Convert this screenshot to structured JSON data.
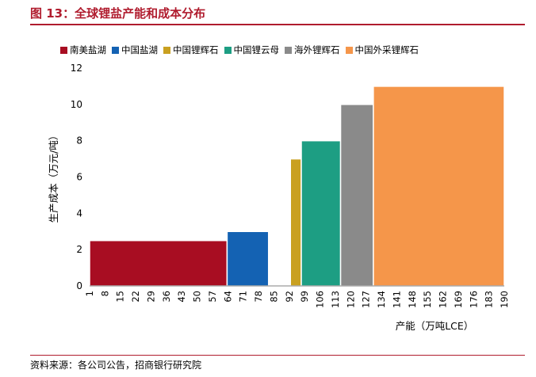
{
  "figure": {
    "title": "图 13：全球锂盐产能和成本分布",
    "source": "资料来源：各公司公告，招商银行研究院"
  },
  "chart_data": {
    "type": "bar",
    "subtype": "variable-width cost curve",
    "xlabel": "产能（万吨LCE）",
    "ylabel": "生产成本（万元/吨）",
    "ylim": [
      0,
      12
    ],
    "yticks": [
      0,
      2,
      4,
      6,
      8,
      10,
      12
    ],
    "xlim": [
      0,
      190
    ],
    "xtick_labels": [
      "1",
      "8",
      "15",
      "22",
      "29",
      "36",
      "43",
      "50",
      "57",
      "64",
      "71",
      "78",
      "85",
      "92",
      "99",
      "106",
      "113",
      "120",
      "127",
      "134",
      "141",
      "148",
      "155",
      "162",
      "169",
      "176",
      "183",
      "190"
    ],
    "grid": false,
    "legend_position": "top",
    "series": [
      {
        "name": "南美盐湖",
        "color": "#a80d22",
        "x_start": 0,
        "x_end": 63,
        "cost": 2.5
      },
      {
        "name": "中国盐湖",
        "color": "#1462b3",
        "x_start": 63,
        "x_end": 82,
        "cost": 3
      },
      {
        "name": "中国锂辉石",
        "color": "#c9a020",
        "x_start": 92,
        "x_end": 97,
        "cost": 7
      },
      {
        "name": "中国锂云母",
        "color": "#1d9e83",
        "x_start": 97,
        "x_end": 115,
        "cost": 8
      },
      {
        "name": "海外锂辉石",
        "color": "#8a8a8a",
        "x_start": 115,
        "x_end": 130,
        "cost": 10
      },
      {
        "name": "中国外采锂辉石",
        "color": "#f5964a",
        "x_start": 130,
        "x_end": 190,
        "cost": 11
      }
    ]
  }
}
